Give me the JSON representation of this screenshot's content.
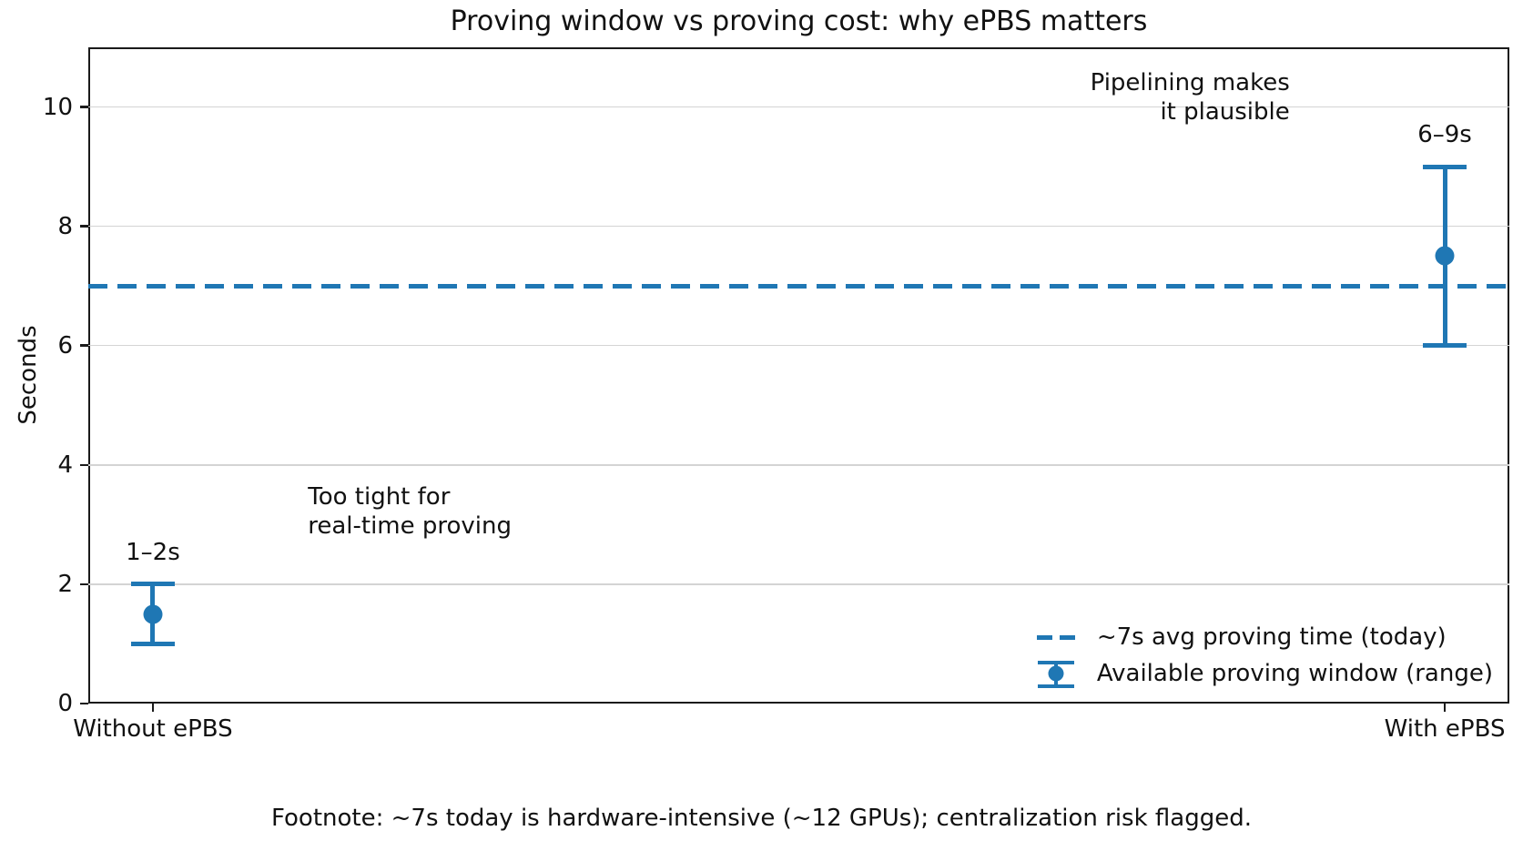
{
  "chart_data": {
    "type": "errorbar",
    "title": "Proving window vs proving cost: why ePBS matters",
    "ylabel": "Seconds",
    "xlabel": "",
    "ylim": [
      0,
      11
    ],
    "yticks": [
      0,
      2,
      4,
      6,
      8,
      10
    ],
    "xlim": [
      -0.05,
      1.05
    ],
    "grid": "horizontal",
    "categories": [
      "Without ePBS",
      "With ePBS"
    ],
    "points": [
      {
        "category": "Without ePBS",
        "x": 0,
        "center": 1.5,
        "low": 1,
        "high": 2,
        "label": "1–2s"
      },
      {
        "category": "With ePBS",
        "x": 1,
        "center": 7.5,
        "low": 6,
        "high": 9,
        "label": "6–9s"
      }
    ],
    "reference_line": {
      "value": 7,
      "style": "dashed",
      "label": "~7s avg proving time (today)"
    },
    "annotations": [
      {
        "text": "Too tight for\nreal-time proving",
        "x": 0.12,
        "y": 3.7,
        "h_align": "left",
        "v_align": "top"
      },
      {
        "text": "Pipelining makes\nit plausible",
        "x": 0.88,
        "y": 10.65,
        "h_align": "right",
        "v_align": "top"
      }
    ],
    "legend": {
      "position": "lower right",
      "frame": false,
      "entries": [
        {
          "symbol": "dashed-line",
          "label": "~7s avg proving time (today)"
        },
        {
          "symbol": "errorbar-marker",
          "label": "Available proving window (range)"
        }
      ]
    },
    "footnote": "Footnote: ~7s today is hardware-intensive (~12 GPUs); centralization risk flagged.",
    "colors": {
      "accent": "#1f77b4",
      "grid": "#d4d4d4",
      "axis": "#1a1a1a",
      "text": "#111111",
      "background": "#ffffff"
    }
  }
}
